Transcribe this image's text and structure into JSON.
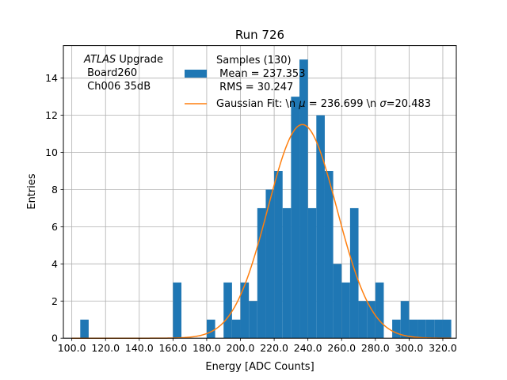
{
  "chart_data": {
    "type": "bar",
    "title": "Run 726",
    "xlabel": "Energy [ADC Counts]",
    "ylabel": "Entries",
    "xlim": [
      95,
      328
    ],
    "ylim": [
      0,
      15.75
    ],
    "grid": true,
    "xticks": [
      100,
      120,
      140,
      160,
      180,
      200,
      220,
      240,
      260,
      280,
      300,
      320
    ],
    "xtick_labels": [
      "100.0",
      "120.0",
      "140.0",
      "160.0",
      "180.0",
      "200.0",
      "220.0",
      "240.0",
      "260.0",
      "280.0",
      "300.0",
      "320.0"
    ],
    "yticks": [
      0,
      2,
      4,
      6,
      8,
      10,
      12,
      14
    ],
    "ytick_labels": [
      "0",
      "2",
      "4",
      "6",
      "8",
      "10",
      "12",
      "14"
    ],
    "bin_width": 5,
    "histogram": {
      "name": "Samples (130)",
      "mean_label": " Mean = 237.353",
      "rms_label": " RMS = 30.247",
      "color": "#1f77b4",
      "bin_starts": [
        105,
        160,
        180,
        190,
        195,
        200,
        205,
        210,
        215,
        220,
        225,
        230,
        235,
        240,
        245,
        250,
        255,
        260,
        265,
        270,
        275,
        280,
        290,
        295,
        300,
        305,
        310,
        315,
        320
      ],
      "counts": [
        1,
        3,
        1,
        3,
        1,
        3,
        2,
        7,
        8,
        9,
        7,
        13,
        15,
        7,
        12,
        9,
        4,
        3,
        7,
        2,
        2,
        3,
        1,
        2,
        1,
        1,
        1,
        1,
        1
      ]
    },
    "fit": {
      "name": "Gaussian Fit: \\n $\\mu$ = 236.699 \\n $\\sigma$=20.483",
      "label_prefix": "Gaussian Fit: \\n ",
      "mu_symbol": "μ",
      "mu_text": " = 236.699 \\n ",
      "sigma_symbol": "σ",
      "sigma_text": "=20.483",
      "mu": 236.699,
      "sigma": 20.483,
      "amplitude": 11.5,
      "color": "#ff7f0e"
    },
    "annotation": {
      "line1_italic": "ATLAS",
      "line1_rest": " Upgrade",
      "line2": " Board260",
      "line3": " Ch006 35dB"
    }
  }
}
